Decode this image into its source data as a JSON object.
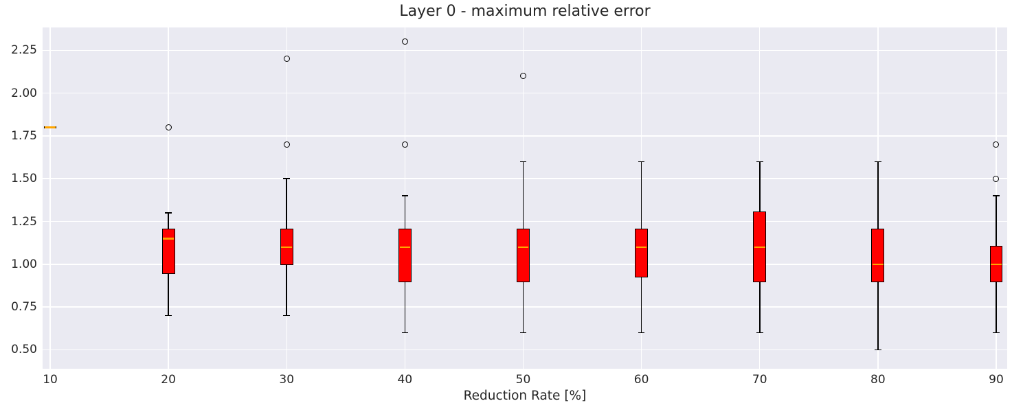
{
  "chart_data": {
    "type": "boxplot",
    "title": "Layer 0 - maximum relative error",
    "xlabel": "Reduction Rate [%]",
    "ylabel": "",
    "categories": [
      10,
      20,
      30,
      40,
      50,
      60,
      70,
      80,
      90
    ],
    "boxes": [
      {
        "x": 10,
        "whislo": 1.8,
        "q1": 1.8,
        "med": 1.8,
        "q3": 1.8,
        "whishi": 1.8,
        "fliers": []
      },
      {
        "x": 20,
        "whislo": 0.7,
        "q1": 0.95,
        "med": 1.15,
        "q3": 1.2,
        "whishi": 1.3,
        "fliers": [
          1.8
        ]
      },
      {
        "x": 30,
        "whislo": 0.7,
        "q1": 1.0,
        "med": 1.1,
        "q3": 1.2,
        "whishi": 1.5,
        "fliers": [
          1.7,
          2.2
        ]
      },
      {
        "x": 40,
        "whislo": 0.6,
        "q1": 0.9,
        "med": 1.1,
        "q3": 1.2,
        "whishi": 1.4,
        "fliers": [
          1.7,
          2.3
        ]
      },
      {
        "x": 50,
        "whislo": 0.6,
        "q1": 0.9,
        "med": 1.1,
        "q3": 1.2,
        "whishi": 1.6,
        "fliers": [
          2.1
        ]
      },
      {
        "x": 60,
        "whislo": 0.6,
        "q1": 0.93,
        "med": 1.1,
        "q3": 1.2,
        "whishi": 1.6,
        "fliers": []
      },
      {
        "x": 70,
        "whislo": 0.6,
        "q1": 0.9,
        "med": 1.1,
        "q3": 1.3,
        "whishi": 1.6,
        "fliers": []
      },
      {
        "x": 80,
        "whislo": 0.5,
        "q1": 0.9,
        "med": 1.0,
        "q3": 1.2,
        "whishi": 1.6,
        "fliers": []
      },
      {
        "x": 90,
        "whislo": 0.6,
        "q1": 0.9,
        "med": 1.0,
        "q3": 1.1,
        "whishi": 1.4,
        "fliers": [
          1.5,
          1.7
        ]
      }
    ],
    "x_ticks": [
      {
        "v": 10,
        "label": "10"
      },
      {
        "v": 20,
        "label": "20"
      },
      {
        "v": 30,
        "label": "30"
      },
      {
        "v": 40,
        "label": "40"
      },
      {
        "v": 50,
        "label": "50"
      },
      {
        "v": 60,
        "label": "60"
      },
      {
        "v": 70,
        "label": "70"
      },
      {
        "v": 80,
        "label": "80"
      },
      {
        "v": 90,
        "label": "90"
      }
    ],
    "y_ticks": [
      {
        "v": 0.5,
        "label": "0.50"
      },
      {
        "v": 0.75,
        "label": "0.75"
      },
      {
        "v": 1.0,
        "label": "1.00"
      },
      {
        "v": 1.25,
        "label": "1.25"
      },
      {
        "v": 1.5,
        "label": "1.50"
      },
      {
        "v": 1.75,
        "label": "1.75"
      },
      {
        "v": 2.0,
        "label": "2.00"
      },
      {
        "v": 2.25,
        "label": "2.25"
      }
    ],
    "xlim": [
      9.36,
      90.93
    ],
    "ylim": [
      0.389,
      2.384
    ],
    "grid": "both",
    "legend": "none",
    "box_width_units": 1.1,
    "cap_width_units": 0.56,
    "colors": {
      "box_fill": "#ff0000",
      "box_edge": "#000000",
      "median": "#ffa500",
      "whisker": "#000000",
      "flier_edge": "#000000",
      "axes_background": "#eaeaf2",
      "grid": "#ffffff",
      "figure_background": "#ffffff",
      "text": "#262626"
    }
  }
}
